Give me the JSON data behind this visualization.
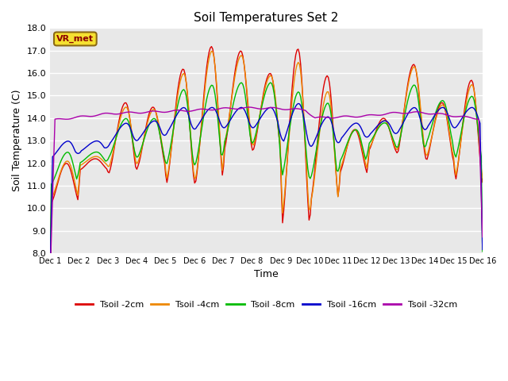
{
  "title": "Soil Temperatures Set 2",
  "xlabel": "Time",
  "ylabel": "Soil Temperature (C)",
  "ylim": [
    8.0,
    18.0
  ],
  "yticks": [
    8.0,
    9.0,
    10.0,
    11.0,
    12.0,
    13.0,
    14.0,
    15.0,
    16.0,
    17.0,
    18.0
  ],
  "xtick_labels": [
    "Dec 1",
    "Dec 2",
    "Dec 3",
    "Dec 4",
    "Dec 5",
    "Dec 6",
    "Dec 7",
    "Dec 8",
    "Dec 9",
    "Dec 10",
    "Dec 11",
    "Dec 12",
    "Dec 13",
    "Dec 14",
    "Dec 15",
    "Dec 16"
  ],
  "colors": {
    "Tsoil_2cm": "#dd0000",
    "Tsoil_4cm": "#ee8800",
    "Tsoil_8cm": "#00bb00",
    "Tsoil_16cm": "#0000cc",
    "Tsoil_32cm": "#aa00aa"
  },
  "legend_labels": [
    "Tsoil -2cm",
    "Tsoil -4cm",
    "Tsoil -8cm",
    "Tsoil -16cm",
    "Tsoil -32cm"
  ],
  "bg_color": "#e8e8e8",
  "annotation_text": "VR_met",
  "days": 15
}
